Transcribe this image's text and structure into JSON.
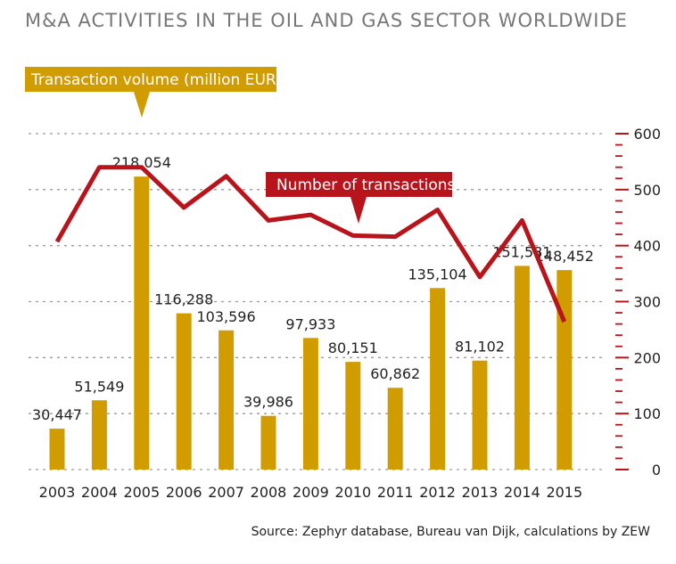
{
  "chart_data": {
    "type": "bar",
    "title": "M&A ACTIVITIES IN THE OIL AND GAS SECTOR WORLDWIDE",
    "categories": [
      "2003",
      "2004",
      "2005",
      "2006",
      "2007",
      "2008",
      "2009",
      "2010",
      "2011",
      "2012",
      "2013",
      "2014",
      "2015"
    ],
    "series": [
      {
        "name": "Transaction volume (million EUR)",
        "type": "bar",
        "values": [
          30447,
          51549,
          218054,
          116288,
          103596,
          39986,
          97933,
          80151,
          60862,
          135104,
          81102,
          151581,
          148452
        ],
        "labels": [
          "30,447",
          "51,549",
          "218,054",
          "116,288",
          "103,596",
          "39,986",
          "97,933",
          "80,151",
          "60,862",
          "135,104",
          "81,102",
          "151,581",
          "148,452"
        ],
        "color": "#d19c00"
      },
      {
        "name": "Number of transactions",
        "type": "line",
        "axis": "right",
        "values": [
          407,
          540,
          540,
          468,
          524,
          445,
          455,
          418,
          416,
          464,
          344,
          445,
          264
        ],
        "color": "#b8141c"
      }
    ],
    "left_ylim": [
      0,
      250000
    ],
    "right_ylim": [
      0,
      600
    ],
    "right_ticks": [
      "0",
      "100",
      "200",
      "300",
      "400",
      "500",
      "600"
    ],
    "grid": true,
    "source": "Source: Zephyr database, Bureau van Dijk, calculations by ZEW"
  }
}
